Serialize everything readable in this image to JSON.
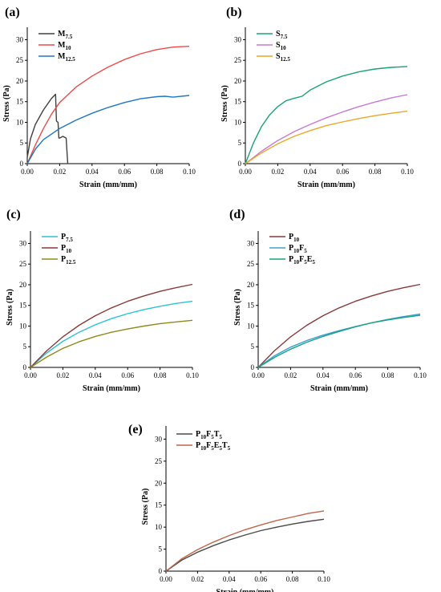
{
  "chart_data": [
    {
      "panel": "(a)",
      "type": "line",
      "xlabel": "Strain (mm/mm)",
      "ylabel": "Stress (Pa)",
      "xlim": [
        0,
        0.1
      ],
      "ylim": [
        0,
        33
      ],
      "xticks": [
        "0.00",
        "0.02",
        "0.04",
        "0.06",
        "0.08",
        "0.10"
      ],
      "yticks": [
        "0",
        "5",
        "10",
        "15",
        "20",
        "25",
        "30"
      ],
      "grid": false,
      "legend_position": "top-left",
      "series": [
        {
          "name": "M",
          "sub": "7.5",
          "color": "#404040",
          "x": [
            0,
            0.002,
            0.005,
            0.01,
            0.015,
            0.0175,
            0.018,
            0.019,
            0.0195,
            0.02,
            0.022,
            0.024,
            0.0245,
            0.025
          ],
          "y": [
            1.5,
            6,
            9.5,
            13,
            15.8,
            16.8,
            10.3,
            10.0,
            6.2,
            6.2,
            6.6,
            6.2,
            3,
            0
          ]
        },
        {
          "name": "M",
          "sub": "10",
          "color": "#ef4a4a",
          "x": [
            0,
            0.005,
            0.01,
            0.015,
            0.02,
            0.03,
            0.04,
            0.05,
            0.06,
            0.07,
            0.08,
            0.09,
            0.1
          ],
          "y": [
            0,
            4.5,
            8.5,
            12,
            14.8,
            18.5,
            21.2,
            23.4,
            25.2,
            26.6,
            27.6,
            28.2,
            28.4
          ]
        },
        {
          "name": "M",
          "sub": "12.5",
          "color": "#1f77c4",
          "x": [
            0,
            0.005,
            0.01,
            0.02,
            0.03,
            0.04,
            0.05,
            0.06,
            0.07,
            0.08,
            0.085,
            0.09,
            0.1
          ],
          "y": [
            0,
            3.5,
            5.8,
            8.5,
            10.5,
            12.2,
            13.6,
            14.8,
            15.7,
            16.2,
            16.3,
            16.1,
            16.5
          ]
        }
      ]
    },
    {
      "panel": "(b)",
      "type": "line",
      "xlabel": "Strain (mm/mm)",
      "ylabel": "Stress (Pa)",
      "xlim": [
        0,
        0.1
      ],
      "ylim": [
        0,
        33
      ],
      "xticks": [
        "0.00",
        "0.02",
        "0.04",
        "0.06",
        "0.08",
        "0.10"
      ],
      "yticks": [
        "0",
        "5",
        "10",
        "15",
        "20",
        "25",
        "30"
      ],
      "grid": false,
      "legend_position": "top-left",
      "series": [
        {
          "name": "S",
          "sub": "7.5",
          "color": "#1aa37a",
          "x": [
            0,
            0.005,
            0.01,
            0.015,
            0.02,
            0.025,
            0.03,
            0.035,
            0.04,
            0.05,
            0.06,
            0.07,
            0.08,
            0.09,
            0.1
          ],
          "y": [
            0,
            5,
            9,
            11.8,
            13.8,
            15.2,
            15.8,
            16.3,
            17.8,
            19.8,
            21.2,
            22.2,
            22.9,
            23.3,
            23.5
          ]
        },
        {
          "name": "S",
          "sub": "10",
          "color": "#c87ad8",
          "x": [
            0,
            0.01,
            0.02,
            0.03,
            0.04,
            0.05,
            0.06,
            0.07,
            0.08,
            0.09,
            0.1
          ],
          "y": [
            0,
            3,
            5.6,
            7.7,
            9.5,
            11.1,
            12.5,
            13.8,
            14.9,
            15.9,
            16.7
          ]
        },
        {
          "name": "S",
          "sub": "12.5",
          "color": "#eea626",
          "x": [
            0,
            0.01,
            0.02,
            0.03,
            0.04,
            0.05,
            0.06,
            0.07,
            0.08,
            0.09,
            0.1
          ],
          "y": [
            0,
            2.6,
            4.8,
            6.6,
            8.0,
            9.2,
            10.1,
            10.9,
            11.6,
            12.2,
            12.7
          ]
        }
      ]
    },
    {
      "panel": "(c)",
      "type": "line",
      "xlabel": "Strain (mm/mm)",
      "ylabel": "Stress (Pa)",
      "xlim": [
        0,
        0.1
      ],
      "ylim": [
        0,
        33
      ],
      "xticks": [
        "0.00",
        "0.02",
        "0.04",
        "0.06",
        "0.08",
        "0.10"
      ],
      "yticks": [
        "0",
        "5",
        "10",
        "15",
        "20",
        "25",
        "30"
      ],
      "grid": false,
      "legend_position": "top-left",
      "series": [
        {
          "name": "P",
          "sub": "7.5",
          "color": "#2bc3d4",
          "x": [
            0,
            0.01,
            0.02,
            0.03,
            0.04,
            0.05,
            0.06,
            0.07,
            0.08,
            0.09,
            0.1
          ],
          "y": [
            0,
            3.5,
            6.3,
            8.5,
            10.3,
            11.8,
            13.0,
            14.0,
            14.8,
            15.5,
            16.0
          ]
        },
        {
          "name": "P",
          "sub": "10",
          "color": "#8b3a3a",
          "x": [
            0,
            0.01,
            0.02,
            0.03,
            0.04,
            0.05,
            0.06,
            0.07,
            0.08,
            0.09,
            0.1
          ],
          "y": [
            0,
            4,
            7.4,
            10.2,
            12.5,
            14.4,
            16.0,
            17.3,
            18.4,
            19.3,
            20.1
          ]
        },
        {
          "name": "P",
          "sub": "12.5",
          "color": "#8f8a1c",
          "x": [
            0,
            0.01,
            0.02,
            0.03,
            0.04,
            0.05,
            0.06,
            0.07,
            0.08,
            0.09,
            0.1
          ],
          "y": [
            0,
            2.5,
            4.6,
            6.2,
            7.5,
            8.5,
            9.3,
            10.0,
            10.6,
            11.0,
            11.4
          ]
        }
      ]
    },
    {
      "panel": "(d)",
      "type": "line",
      "xlabel": "Strain (mm/mm)",
      "ylabel": "Stress (Pa)",
      "xlim": [
        0,
        0.1
      ],
      "ylim": [
        0,
        33
      ],
      "xticks": [
        "0.00",
        "0.02",
        "0.04",
        "0.06",
        "0.08",
        "0.10"
      ],
      "yticks": [
        "0",
        "5",
        "10",
        "15",
        "20",
        "25",
        "30"
      ],
      "grid": false,
      "legend_position": "top-left",
      "series": [
        {
          "name": "P",
          "sub": "10",
          "color": "#8b3a3a",
          "x": [
            0,
            0.01,
            0.02,
            0.03,
            0.04,
            0.05,
            0.06,
            0.07,
            0.08,
            0.09,
            0.1
          ],
          "y": [
            0,
            4,
            7.4,
            10.2,
            12.5,
            14.4,
            16.0,
            17.3,
            18.4,
            19.3,
            20.1
          ]
        },
        {
          "name": "P10F5",
          "sub": "",
          "color": "#3ba0d4",
          "x": [
            0,
            0.01,
            0.02,
            0.03,
            0.04,
            0.05,
            0.06,
            0.07,
            0.08,
            0.09,
            0.1
          ],
          "y": [
            0,
            2.8,
            4.9,
            6.5,
            7.8,
            8.9,
            9.9,
            10.8,
            11.6,
            12.3,
            12.9
          ]
        },
        {
          "name": "P10F5E5",
          "sub": "",
          "color": "#1aa37a",
          "x": [
            0,
            0.01,
            0.02,
            0.03,
            0.04,
            0.05,
            0.06,
            0.07,
            0.08,
            0.09,
            0.1
          ],
          "y": [
            0,
            2.4,
            4.4,
            6.1,
            7.5,
            8.7,
            9.8,
            10.8,
            11.5,
            12.1,
            12.6
          ]
        }
      ]
    },
    {
      "panel": "(e)",
      "type": "line",
      "xlabel": "Strain (mm/mm)",
      "ylabel": "Stress (Pa)",
      "xlim": [
        0,
        0.1
      ],
      "ylim": [
        0,
        33
      ],
      "xticks": [
        "0.00",
        "0.02",
        "0.04",
        "0.06",
        "0.08",
        "0.10"
      ],
      "yticks": [
        "0",
        "5",
        "10",
        "15",
        "20",
        "25",
        "30"
      ],
      "grid": false,
      "legend_position": "top-left",
      "series": [
        {
          "name": "P10F5T5",
          "sub": "",
          "color": "#4a4a4a",
          "x": [
            0,
            0.01,
            0.02,
            0.03,
            0.04,
            0.05,
            0.06,
            0.07,
            0.08,
            0.09,
            0.1
          ],
          "y": [
            0,
            2.5,
            4.3,
            5.8,
            7.1,
            8.2,
            9.2,
            10.0,
            10.7,
            11.3,
            11.8
          ]
        },
        {
          "name": "P10F5E5T5",
          "sub": "",
          "color": "#c0654a",
          "x": [
            0,
            0.01,
            0.02,
            0.03,
            0.04,
            0.05,
            0.06,
            0.07,
            0.08,
            0.09,
            0.1
          ],
          "y": [
            0,
            2.8,
            4.9,
            6.6,
            8.1,
            9.4,
            10.5,
            11.5,
            12.3,
            13.1,
            13.7
          ]
        }
      ]
    }
  ],
  "legend_labels": [
    [
      {
        "parts": [
          [
            "M",
            false
          ],
          [
            "7.5",
            true
          ]
        ]
      },
      {
        "parts": [
          [
            "M",
            false
          ],
          [
            "10",
            true
          ]
        ]
      },
      {
        "parts": [
          [
            "M",
            false
          ],
          [
            "12.5",
            true
          ]
        ]
      }
    ],
    [
      {
        "parts": [
          [
            "S",
            false
          ],
          [
            "7.5",
            true
          ]
        ]
      },
      {
        "parts": [
          [
            "S",
            false
          ],
          [
            "10",
            true
          ]
        ]
      },
      {
        "parts": [
          [
            "S",
            false
          ],
          [
            "12.5",
            true
          ]
        ]
      }
    ],
    [
      {
        "parts": [
          [
            "P",
            false
          ],
          [
            "7.5",
            true
          ]
        ]
      },
      {
        "parts": [
          [
            "P",
            false
          ],
          [
            "10",
            true
          ]
        ]
      },
      {
        "parts": [
          [
            "P",
            false
          ],
          [
            "12.5",
            true
          ]
        ]
      }
    ],
    [
      {
        "parts": [
          [
            "P",
            false
          ],
          [
            "10",
            true
          ]
        ]
      },
      {
        "parts": [
          [
            "P",
            false
          ],
          [
            "10",
            true
          ],
          [
            "F",
            false
          ],
          [
            "5",
            true
          ]
        ]
      },
      {
        "parts": [
          [
            "P",
            false
          ],
          [
            "10",
            true
          ],
          [
            "F",
            false
          ],
          [
            "5",
            true
          ],
          [
            "E",
            false
          ],
          [
            "5",
            true
          ]
        ]
      }
    ],
    [
      {
        "parts": [
          [
            "P",
            false
          ],
          [
            "10",
            true
          ],
          [
            "F",
            false
          ],
          [
            "5",
            true
          ],
          [
            "T",
            false
          ],
          [
            "5",
            true
          ]
        ]
      },
      {
        "parts": [
          [
            "P",
            false
          ],
          [
            "10",
            true
          ],
          [
            "F",
            false
          ],
          [
            "5",
            true
          ],
          [
            "E",
            false
          ],
          [
            "5",
            true
          ],
          [
            "T",
            false
          ],
          [
            "5",
            true
          ]
        ]
      }
    ]
  ]
}
